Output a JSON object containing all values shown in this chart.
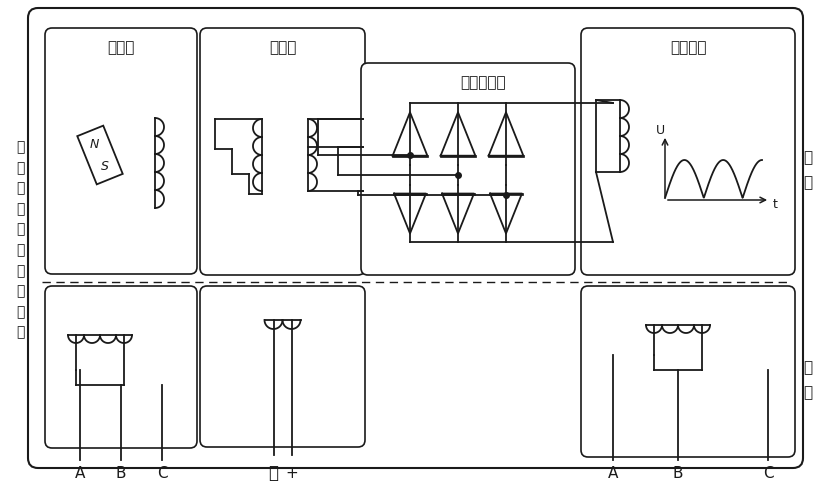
{
  "bg_color": "#ffffff",
  "line_color": "#1a1a1a",
  "labels": {
    "yongciji": "永磁机",
    "liciji": "励磁机",
    "xuanzhuan": "旋转整流器",
    "zhufadian": "主发电机",
    "zuobian": "三\n级\n电\n励\n磁\n式\n同\n步\n电\n机",
    "zhuanzi": "转\n子",
    "dingzi": "定\n子",
    "A1": "A",
    "B1": "B",
    "C1": "C",
    "minus": "－",
    "plus": "+",
    "A2": "A",
    "B2": "B",
    "C2": "C",
    "U": "U",
    "t": "t",
    "N": "N",
    "S": "S"
  },
  "fig_width": 8.38,
  "fig_height": 5.0,
  "dpi": 100
}
